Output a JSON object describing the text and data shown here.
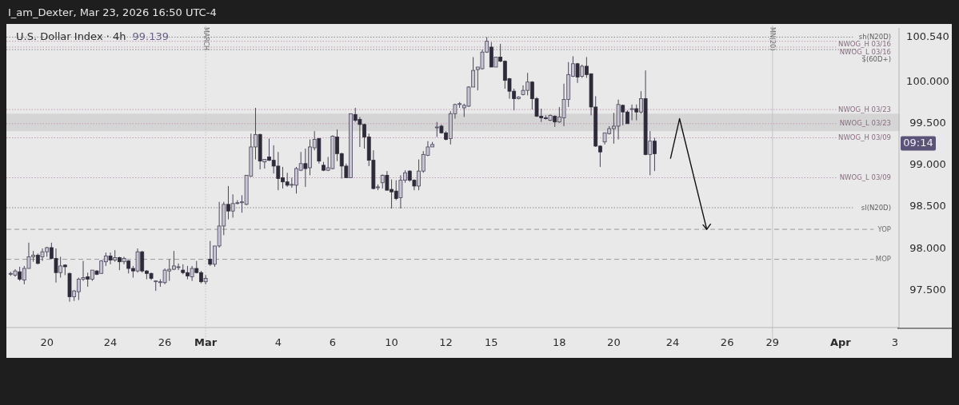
{
  "chart_data": {
    "type": "candlestick",
    "title": "U.S. Dollar Index · 4h",
    "subtitle": "99.139",
    "annotations": [
      "I_am_Dexter, Mar 23, 2026 16:50 UTC-4",
      "09:14"
    ],
    "categories": [
      null,
      null,
      null,
      null,
      null,
      null,
      null,
      null,
      "20",
      null,
      null,
      null,
      null,
      null,
      null,
      null,
      null,
      null,
      null,
      null,
      null,
      null,
      "24",
      null,
      null,
      null,
      null,
      null,
      null,
      null,
      null,
      null,
      null,
      null,
      "26",
      null,
      null,
      null,
      null,
      null,
      null,
      null,
      null,
      "Mar",
      null,
      null,
      null,
      null,
      null,
      null,
      null,
      null,
      null,
      null,
      null,
      null,
      null,
      null,
      null,
      "4",
      null,
      null,
      null,
      null,
      null,
      null,
      null,
      null,
      null,
      null,
      null,
      "6",
      null,
      null,
      null,
      null,
      null,
      null,
      null,
      null,
      null,
      null,
      null,
      null,
      "10",
      null,
      null,
      null,
      null,
      null,
      null,
      null,
      null,
      null,
      null,
      null,
      "12",
      null,
      null,
      null,
      null,
      null,
      null,
      null,
      null,
      null,
      "15",
      null,
      null,
      null,
      null,
      null,
      null,
      null,
      null,
      null,
      null,
      null,
      null,
      null,
      null,
      "18",
      null,
      null,
      null,
      null,
      null,
      null,
      null,
      null,
      null,
      null,
      null,
      "20",
      null,
      null,
      null,
      null,
      null,
      null,
      null,
      null,
      null,
      null,
      null,
      null,
      "24",
      null,
      null,
      null,
      null,
      null,
      null,
      null,
      null,
      null,
      null,
      null,
      "26",
      null,
      null,
      null,
      null,
      null,
      null,
      null,
      null,
      null,
      "29",
      null,
      null,
      null,
      null,
      null,
      null,
      null,
      null,
      null,
      null,
      null,
      null,
      null,
      null,
      "Apr",
      null,
      null,
      null,
      null,
      null,
      null,
      null,
      null,
      null,
      null,
      null,
      "3",
      null
    ],
    "ohlc": [
      [
        97.69,
        97.72,
        97.67,
        97.7
      ],
      [
        97.68,
        97.75,
        97.66,
        97.73
      ],
      [
        97.72,
        97.78,
        97.61,
        97.63
      ],
      [
        97.62,
        97.79,
        97.57,
        97.76
      ],
      [
        97.76,
        98.07,
        97.76,
        97.9
      ],
      [
        97.9,
        97.97,
        97.84,
        97.92
      ],
      [
        97.92,
        97.94,
        97.81,
        97.82
      ],
      [
        97.9,
        98.0,
        97.85,
        97.96
      ],
      [
        97.96,
        98.02,
        97.9,
        98.01
      ],
      [
        98.01,
        98.07,
        97.87,
        97.88
      ],
      [
        97.88,
        98.0,
        97.59,
        97.71
      ],
      [
        97.71,
        97.9,
        97.65,
        97.79
      ],
      [
        97.8,
        97.81,
        97.68,
        97.78
      ],
      [
        97.7,
        97.71,
        97.36,
        97.42
      ],
      [
        97.42,
        97.5,
        97.37,
        97.49
      ],
      [
        97.48,
        97.65,
        97.38,
        97.63
      ],
      [
        97.63,
        97.85,
        97.61,
        97.65
      ],
      [
        97.66,
        97.71,
        97.54,
        97.63
      ],
      [
        97.63,
        97.74,
        97.61,
        97.74
      ],
      [
        97.73,
        97.74,
        97.68,
        97.69
      ],
      [
        97.7,
        97.86,
        97.7,
        97.85
      ],
      [
        97.84,
        97.95,
        97.79,
        97.91
      ],
      [
        97.91,
        97.95,
        97.81,
        97.86
      ],
      [
        97.86,
        97.98,
        97.84,
        97.89
      ],
      [
        97.89,
        97.9,
        97.74,
        97.84
      ],
      [
        97.84,
        97.9,
        97.81,
        97.88
      ],
      [
        97.85,
        97.86,
        97.7,
        97.76
      ],
      [
        97.76,
        97.79,
        97.65,
        97.73
      ],
      [
        97.73,
        98.0,
        97.71,
        97.96
      ],
      [
        97.96,
        97.97,
        97.71,
        97.73
      ],
      [
        97.73,
        97.74,
        97.63,
        97.7
      ],
      [
        97.7,
        97.71,
        97.62,
        97.64
      ],
      [
        97.6,
        97.61,
        97.49,
        97.61
      ],
      [
        97.59,
        97.63,
        97.54,
        97.6
      ],
      [
        97.59,
        97.76,
        97.57,
        97.74
      ],
      [
        97.73,
        97.87,
        97.61,
        97.75
      ],
      [
        97.75,
        97.97,
        97.74,
        97.79
      ],
      [
        97.78,
        97.82,
        97.74,
        97.78
      ],
      [
        97.74,
        97.81,
        97.69,
        97.71
      ],
      [
        97.71,
        97.79,
        97.63,
        97.67
      ],
      [
        97.66,
        97.79,
        97.61,
        97.76
      ],
      [
        97.76,
        97.85,
        97.7,
        97.71
      ],
      [
        97.71,
        97.73,
        97.58,
        97.6
      ],
      [
        97.6,
        97.68,
        97.57,
        97.64
      ],
      [
        97.87,
        98.09,
        97.79,
        97.81
      ],
      [
        97.81,
        98.03,
        97.78,
        98.03
      ],
      [
        98.03,
        98.56,
        98.01,
        98.27
      ],
      [
        98.27,
        98.56,
        98.16,
        98.53
      ],
      [
        98.53,
        98.75,
        98.35,
        98.45
      ],
      [
        98.45,
        98.65,
        98.37,
        98.54
      ],
      [
        98.54,
        98.58,
        98.53,
        98.55
      ],
      [
        98.55,
        98.64,
        98.43,
        98.56
      ],
      [
        98.53,
        98.88,
        98.52,
        98.88
      ],
      [
        98.87,
        99.38,
        98.86,
        99.22
      ],
      [
        99.22,
        99.69,
        99.07,
        99.37
      ],
      [
        99.37,
        99.38,
        98.95,
        99.05
      ],
      [
        99.04,
        99.07,
        98.96,
        99.07
      ],
      [
        99.1,
        99.32,
        99.05,
        99.06
      ],
      [
        99.06,
        99.24,
        98.9,
        98.99
      ],
      [
        98.99,
        99.16,
        98.7,
        98.84
      ],
      [
        98.85,
        98.98,
        98.72,
        98.8
      ],
      [
        98.8,
        98.91,
        98.74,
        98.76
      ],
      [
        98.76,
        98.85,
        98.73,
        98.77
      ],
      [
        98.76,
        98.98,
        98.66,
        98.96
      ],
      [
        98.94,
        99.16,
        98.93,
        99.02
      ],
      [
        99.02,
        99.2,
        98.74,
        98.96
      ],
      [
        98.97,
        99.31,
        98.88,
        99.22
      ],
      [
        99.21,
        99.41,
        99.18,
        99.31
      ],
      [
        99.32,
        99.33,
        99.02,
        99.05
      ],
      [
        99.0,
        99.04,
        98.93,
        98.94
      ],
      [
        98.94,
        99.1,
        98.93,
        98.97
      ],
      [
        98.96,
        99.36,
        98.95,
        99.35
      ],
      [
        99.34,
        99.43,
        99.05,
        99.14
      ],
      [
        99.14,
        99.15,
        98.84,
        98.99
      ],
      [
        98.99,
        99.02,
        98.85,
        98.85
      ],
      [
        98.85,
        99.62,
        98.85,
        99.62
      ],
      [
        99.61,
        99.69,
        99.52,
        99.54
      ],
      [
        99.55,
        99.58,
        99.22,
        99.49
      ],
      [
        99.49,
        99.5,
        99.2,
        99.34
      ],
      [
        99.34,
        99.38,
        98.99,
        99.06
      ],
      [
        99.06,
        99.18,
        98.71,
        98.72
      ],
      [
        98.73,
        98.77,
        98.7,
        98.74
      ],
      [
        98.79,
        98.89,
        98.72,
        98.88
      ],
      [
        98.88,
        98.93,
        98.7,
        98.7
      ],
      [
        98.71,
        98.83,
        98.48,
        98.68
      ],
      [
        98.69,
        98.82,
        98.58,
        98.6
      ],
      [
        98.61,
        98.88,
        98.48,
        98.82
      ],
      [
        98.82,
        98.94,
        98.79,
        98.91
      ],
      [
        98.93,
        98.94,
        98.8,
        98.82
      ],
      [
        98.82,
        98.83,
        98.7,
        98.75
      ],
      [
        98.75,
        99.07,
        98.7,
        98.93
      ],
      [
        98.93,
        99.17,
        98.91,
        99.13
      ],
      [
        99.12,
        99.29,
        99.11,
        99.22
      ],
      [
        99.22,
        99.28,
        99.22,
        99.25
      ],
      [
        99.45,
        99.52,
        99.34,
        99.46
      ],
      [
        99.47,
        99.49,
        99.38,
        99.39
      ],
      [
        99.39,
        99.41,
        99.3,
        99.31
      ],
      [
        99.32,
        99.65,
        99.25,
        99.62
      ],
      [
        99.62,
        99.74,
        99.56,
        99.73
      ],
      [
        99.73,
        99.76,
        99.69,
        99.74
      ],
      [
        99.69,
        99.74,
        99.58,
        99.72
      ],
      [
        99.71,
        99.95,
        99.7,
        99.94
      ],
      [
        99.94,
        100.3,
        99.94,
        100.14
      ],
      [
        100.15,
        100.18,
        99.9,
        100.18
      ],
      [
        100.16,
        100.39,
        100.15,
        100.36
      ],
      [
        100.36,
        100.54,
        100.35,
        100.49
      ],
      [
        100.42,
        100.48,
        100.18,
        100.18
      ],
      [
        100.18,
        100.3,
        100.18,
        100.3
      ],
      [
        100.3,
        100.46,
        100.24,
        100.25
      ],
      [
        100.25,
        100.26,
        99.92,
        100.02
      ],
      [
        100.04,
        100.05,
        99.8,
        99.89
      ],
      [
        99.89,
        99.92,
        99.66,
        99.8
      ],
      [
        99.8,
        99.83,
        99.79,
        99.82
      ],
      [
        99.85,
        99.96,
        99.84,
        99.9
      ],
      [
        99.9,
        100.11,
        99.84,
        100.0
      ],
      [
        100.0,
        100.01,
        99.67,
        99.8
      ],
      [
        99.8,
        99.82,
        99.58,
        99.59
      ],
      [
        99.59,
        99.68,
        99.52,
        99.57
      ],
      [
        99.57,
        99.6,
        99.55,
        99.56
      ],
      [
        99.54,
        99.61,
        99.53,
        99.6
      ],
      [
        99.59,
        99.6,
        99.46,
        99.52
      ],
      [
        99.52,
        99.7,
        99.51,
        99.58
      ],
      [
        99.57,
        99.98,
        99.47,
        99.79
      ],
      [
        99.79,
        100.24,
        99.7,
        100.09
      ],
      [
        100.07,
        100.31,
        100.06,
        100.22
      ],
      [
        100.22,
        100.23,
        99.99,
        100.06
      ],
      [
        100.07,
        100.21,
        100.05,
        100.19
      ],
      [
        100.19,
        100.3,
        100.05,
        100.09
      ],
      [
        100.1,
        100.1,
        99.6,
        99.7
      ],
      [
        99.7,
        99.83,
        99.22,
        99.23
      ],
      [
        99.23,
        99.24,
        98.98,
        99.16
      ],
      [
        99.28,
        99.39,
        99.25,
        99.39
      ],
      [
        99.38,
        99.47,
        99.37,
        99.44
      ],
      [
        99.44,
        99.63,
        99.26,
        99.47
      ],
      [
        99.47,
        99.79,
        99.31,
        99.73
      ],
      [
        99.72,
        99.73,
        99.48,
        99.64
      ],
      [
        99.64,
        99.66,
        99.5,
        99.5
      ],
      [
        99.67,
        99.73,
        99.54,
        99.68
      ],
      [
        99.68,
        99.73,
        99.54,
        99.64
      ],
      [
        99.64,
        99.89,
        99.62,
        99.8
      ],
      [
        99.8,
        100.14,
        99.12,
        99.13
      ],
      [
        99.13,
        99.41,
        98.88,
        99.29
      ],
      [
        99.29,
        99.33,
        98.93,
        99.139
      ],
      null,
      null,
      null,
      null,
      null,
      null,
      null,
      null,
      null,
      null,
      null,
      null,
      null,
      null,
      null,
      null,
      null,
      null,
      null,
      null,
      null,
      null,
      null,
      null,
      null,
      null,
      null,
      null,
      null,
      null,
      null,
      null,
      null,
      null,
      null,
      null,
      null,
      null,
      null,
      null,
      null,
      null,
      null,
      null,
      null,
      null,
      null,
      null,
      null,
      null,
      null,
      null,
      null,
      null
    ],
    "ylim": [
      97.05,
      100.65
    ],
    "yticks": [
      {
        "value": 97.5,
        "label": "97.500"
      },
      {
        "value": 98,
        "label": "98.000"
      },
      {
        "value": 98.5,
        "label": "98.500"
      },
      {
        "value": 99,
        "label": "99.000"
      },
      {
        "value": 99.5,
        "label": "99.500"
      },
      {
        "value": 100,
        "label": "100.000"
      },
      {
        "value": 100.54,
        "label": "100.540"
      }
    ],
    "ref_lines": [
      {
        "axis": "y",
        "value": 100.54,
        "label": "sh(N20D)",
        "color": "#8a8a8a",
        "line_style": "dotted"
      },
      {
        "axis": "y",
        "value": 100.49,
        "label": "NWOG_H 03/16",
        "color": "#c49ab8",
        "line_style": "dotted"
      },
      {
        "axis": "y",
        "value": 100.42,
        "label": "NWOG_L 03/16",
        "color": "#c49ab8",
        "line_style": "dotted"
      },
      {
        "axis": "y",
        "value": 100.39,
        "label": "$(60D+)",
        "color": "#8a8a8a",
        "line_style": "dotted"
      },
      {
        "axis": "y",
        "value": 99.67,
        "label": "NWOG_H 03/23",
        "color": "#c49ab8",
        "line_style": "dotted"
      },
      {
        "axis": "y",
        "value": 99.5,
        "label": "NWOG_L 03/23",
        "color": "#c49ab8",
        "line_style": "dotted"
      },
      {
        "axis": "y",
        "value": 99.33,
        "label": "NWOG_H 03/09",
        "color": "#c49ab8",
        "line_style": "dotted"
      },
      {
        "axis": "y",
        "value": 98.85,
        "label": "NWOG_L 03/09",
        "color": "#c49ab8",
        "line_style": "dotted"
      },
      {
        "axis": "y",
        "value": 98.49,
        "label": "sl(N20D)",
        "color": "#8a8a8a",
        "line_style": "dotted"
      },
      {
        "axis": "y",
        "value": 98.23,
        "label": "YOP",
        "color": "#9a9a9a",
        "line_style": "dashed"
      },
      {
        "axis": "y",
        "value": 97.87,
        "label": "MOP",
        "color": "#9a9a9a",
        "line_style": "dashed"
      },
      {
        "axis": "x",
        "value": "Mar",
        "label": "MARCH",
        "color": "#c4c4c4",
        "line_style": "dotted"
      },
      {
        "axis": "x",
        "value": "29",
        "label": "MN(20)",
        "color": "#c4c4c4",
        "line_style": "solid"
      }
    ],
    "bands": [
      {
        "axis": "y",
        "from": 99.41,
        "to": 99.62,
        "color": "#d3d3d3"
      }
    ]
  }
}
